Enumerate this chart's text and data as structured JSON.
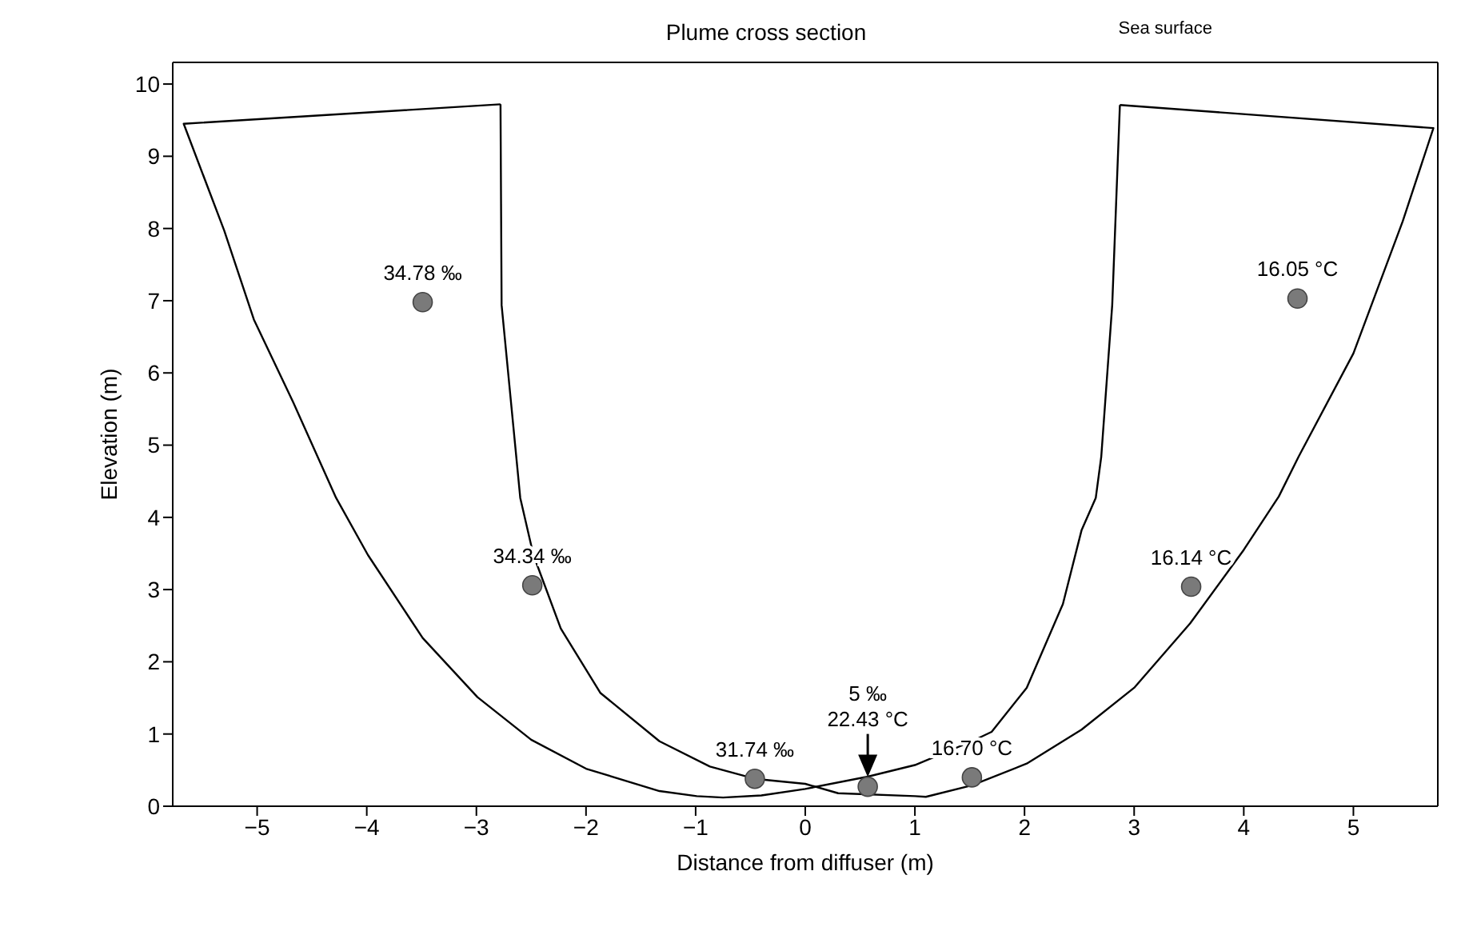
{
  "chart_data": {
    "type": "line",
    "title": "Plume cross section",
    "xlabel": "Distance from diffuser (m)",
    "ylabel": "Elevation (m)",
    "xlim": [
      -5.77,
      5.77
    ],
    "xticks": [
      -5,
      -4,
      -3,
      -2,
      -1,
      0,
      1,
      2,
      3,
      4,
      5
    ],
    "ylim": [
      0,
      10.3
    ],
    "yticks": [
      0,
      1,
      2,
      3,
      4,
      5,
      6,
      7,
      8,
      9,
      10
    ],
    "grid": false,
    "series": [
      {
        "color": "#000000",
        "marker": "none",
        "line_style": "solid",
        "x": [
          -2.78,
          -5.67,
          -5.3,
          -5.03,
          -4.67,
          -4.28,
          -3.99,
          -3.49,
          -2.99,
          -2.5,
          -2.0,
          -1.33,
          -0.99,
          -0.75,
          -0.4,
          0,
          0.57,
          1.0,
          1.52,
          1.7,
          2.02,
          2.35,
          2.52,
          2.65,
          2.7,
          2.8,
          2.87
        ],
        "values": [
          9.72,
          9.45,
          7.97,
          6.74,
          5.59,
          4.27,
          3.48,
          2.33,
          1.51,
          0.92,
          0.52,
          0.21,
          0.14,
          0.12,
          0.15,
          0.24,
          0.41,
          0.57,
          0.9,
          1.03,
          1.64,
          2.8,
          3.82,
          4.27,
          4.84,
          6.94,
          9.71
        ]
      },
      {
        "color": "#000000",
        "marker": "none",
        "line_style": "solid",
        "x": [
          2.87,
          5.73,
          5.45,
          5.0,
          4.5,
          4.32,
          4.0,
          3.51,
          3.0,
          2.52,
          2.02,
          1.52,
          1.1,
          1.0,
          0.3,
          0,
          -0.46,
          -0.87,
          -1.33,
          -1.87,
          -2.23,
          -2.48,
          -2.6,
          -2.77,
          -2.78
        ],
        "values": [
          9.71,
          9.39,
          8.1,
          6.27,
          4.84,
          4.29,
          3.55,
          2.53,
          1.64,
          1.06,
          0.59,
          0.29,
          0.13,
          0.14,
          0.18,
          0.31,
          0.38,
          0.55,
          0.9,
          1.57,
          2.46,
          3.48,
          4.27,
          6.94,
          9.72
        ]
      },
      {
        "type": "scatter",
        "color": "#7a7a7a",
        "marker": "circle",
        "x": [
          -3.49,
          -2.49,
          -0.46,
          0.57,
          1.52,
          3.52,
          4.49
        ],
        "values": [
          6.98,
          3.06,
          0.38,
          0.27,
          0.4,
          3.04,
          7.03
        ]
      }
    ],
    "annotations": [
      "Sea surface",
      {
        "text": "34.78 ‰",
        "x": -3.49,
        "y": 6.98
      },
      {
        "text": "34.34 ‰",
        "x": -2.49,
        "y": 3.06
      },
      {
        "text": "31.74 ‰",
        "x": -0.46,
        "y": 0.38
      },
      {
        "text": "5 ‰\n22.43 °C",
        "x": 0.57,
        "y": 0.27
      },
      {
        "text": "16.70 °C",
        "x": 1.52,
        "y": 0.4
      },
      {
        "text": "16.14 °C",
        "x": 3.52,
        "y": 3.04
      },
      {
        "text": "16.05 °C",
        "x": 4.49,
        "y": 7.03
      }
    ]
  }
}
